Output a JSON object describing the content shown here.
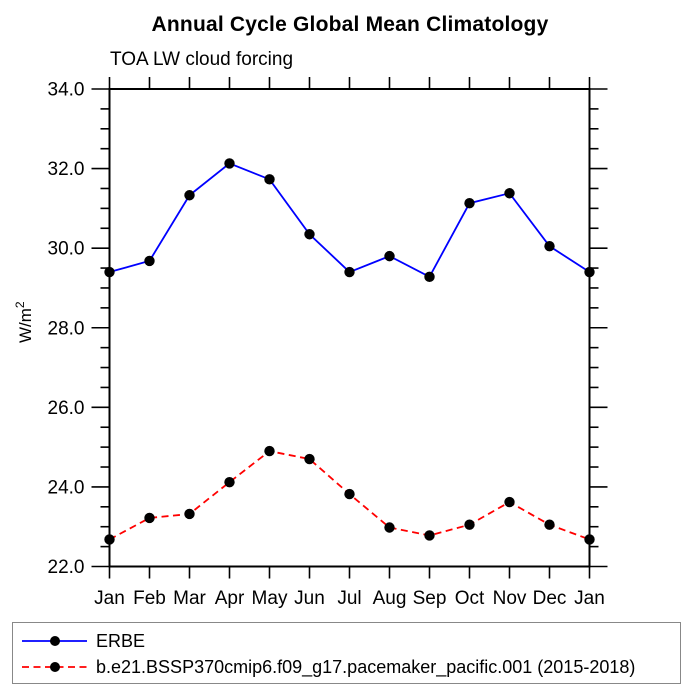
{
  "chart": {
    "title": "Annual Cycle Global Mean Climatology",
    "subtitle": "TOA LW cloud forcing"
  },
  "chart_data": {
    "type": "line",
    "title": "Annual Cycle Global Mean Climatology",
    "subtitle": "TOA LW cloud forcing",
    "xlabel": "",
    "ylabel": "W/m^2",
    "ylabel_base": "W/m",
    "ylabel_exponent": "2",
    "categories": [
      "Jan",
      "Feb",
      "Mar",
      "Apr",
      "May",
      "Jun",
      "Jul",
      "Aug",
      "Sep",
      "Oct",
      "Nov",
      "Dec",
      "Jan"
    ],
    "ylim": [
      22.0,
      34.0
    ],
    "ytick_major_step": 2.0,
    "ytick_minor_step": 0.5,
    "ytick_label_format": "one-decimal",
    "grid": false,
    "legend_position": "bottom-box",
    "frame_color": "#000000",
    "marker_color": "#000000",
    "series": [
      {
        "name": "ERBE",
        "color": "#0000ff",
        "style": "solid",
        "marker": "filled-circle",
        "values": [
          29.4,
          29.68,
          31.33,
          32.13,
          31.73,
          30.35,
          29.4,
          29.8,
          29.28,
          31.13,
          31.38,
          30.05,
          29.4
        ]
      },
      {
        "name": "b.e21.BSSP370cmip6.f09_g17.pacemaker_pacific.001 (2015-2018)",
        "color": "#ff0000",
        "style": "dashed",
        "marker": "filled-circle",
        "values": [
          22.68,
          23.22,
          23.32,
          24.12,
          24.9,
          24.7,
          23.82,
          22.98,
          22.78,
          23.05,
          23.62,
          23.05,
          22.68
        ]
      }
    ]
  }
}
